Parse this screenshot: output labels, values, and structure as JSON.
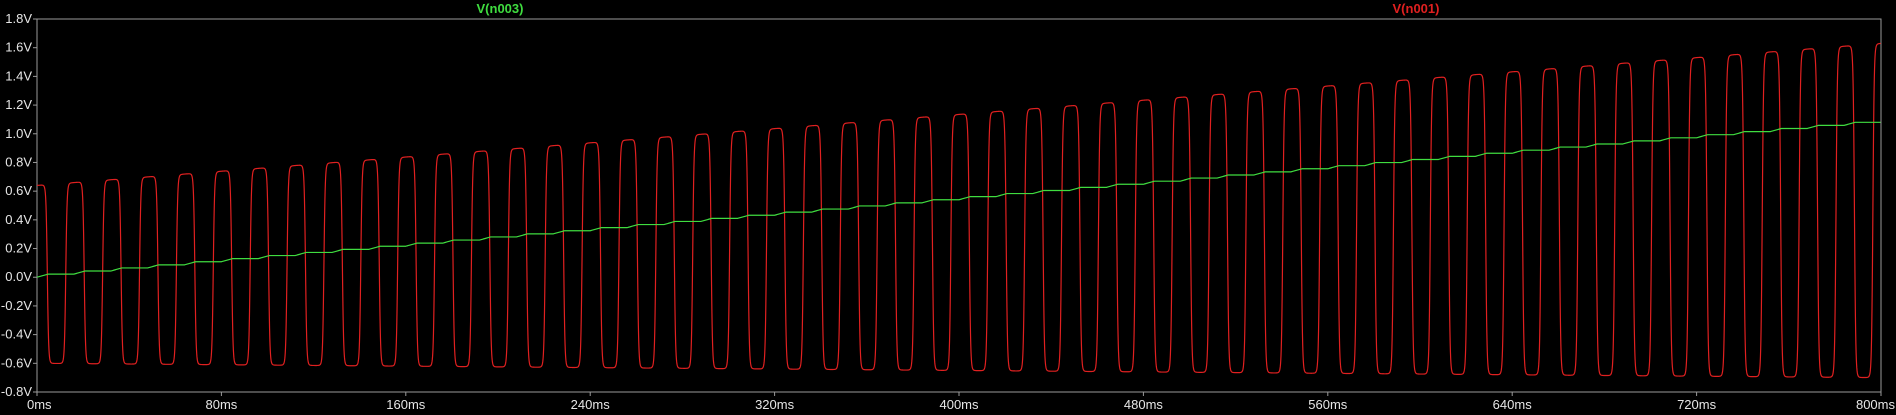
{
  "chart_data": {
    "type": "line",
    "background": "#000000",
    "grid": false,
    "xunit": "ms",
    "x_ticks": [
      0,
      80,
      160,
      240,
      320,
      400,
      480,
      560,
      640,
      720,
      800
    ],
    "x_tick_labels": [
      "0ms",
      "80ms",
      "160ms",
      "240ms",
      "320ms",
      "400ms",
      "480ms",
      "560ms",
      "640ms",
      "720ms",
      "800ms"
    ],
    "xlim": [
      0,
      800
    ],
    "y_ticks": [
      -0.8,
      -0.6,
      -0.4,
      -0.2,
      0.0,
      0.2,
      0.4,
      0.6,
      0.8,
      1.0,
      1.2,
      1.4,
      1.6,
      1.8
    ],
    "y_tick_labels": [
      "-0.8V",
      "-0.6V",
      "-0.4V",
      "-0.2V",
      "0.0V",
      "0.2V",
      "0.4V",
      "0.6V",
      "0.8V",
      "1.0V",
      "1.2V",
      "1.4V",
      "1.6V",
      "1.8V"
    ],
    "ylim": [
      -0.8,
      1.8
    ],
    "legend_placement": "top",
    "series": [
      {
        "name": "V(n003)",
        "color": "#3fdc3f",
        "shape": "staircase-ramp",
        "step_period_ms": 16.0,
        "start_value": 0.0,
        "end_value": 1.08,
        "x_range": [
          0,
          800
        ]
      },
      {
        "name": "V(n001)",
        "color": "#e02020",
        "shape": "square-oscillation",
        "period_ms": 16.0,
        "cycles": 50,
        "high_start": 0.64,
        "high_end": 1.63,
        "low_start": -0.6,
        "low_end": -0.7,
        "x_range": [
          0,
          800
        ]
      }
    ]
  }
}
